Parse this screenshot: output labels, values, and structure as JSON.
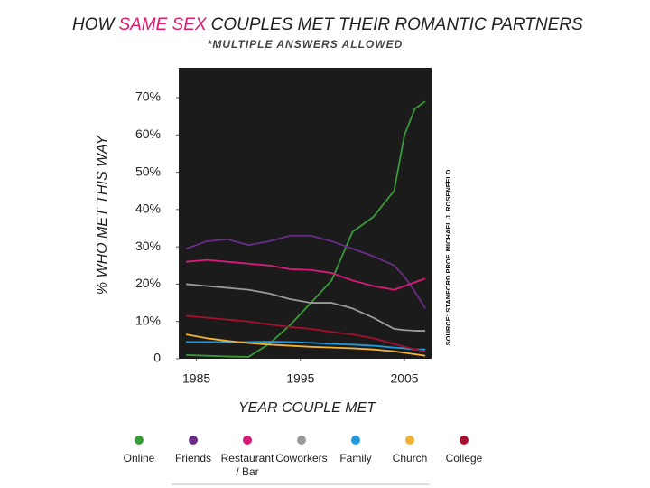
{
  "chart_data": {
    "type": "line",
    "title": {
      "before": "HOW",
      "highlight": "SAME SEX",
      "after": "COUPLES MET THEIR ROMANTIC PARTNERS"
    },
    "subtitle": "*MULTIPLE ANSWERS ALLOWED",
    "x_label": "YEAR COUPLE MET",
    "y_label": "% WHO MET THIS WAY",
    "source": "SOURCE:  STANFORD PROF. MICHAEL J. ROSENFELD",
    "x": [
      1984,
      1986,
      1988,
      1990,
      1992,
      1994,
      1996,
      1998,
      2000,
      2002,
      2004,
      2005,
      2006,
      2007
    ],
    "xlim": [
      1983.3,
      2007.6
    ],
    "xticks": [
      1985,
      1995,
      2005
    ],
    "ylim": [
      0,
      78
    ],
    "yticks": [
      0,
      {
        "value": 10,
        "label": "10%"
      },
      {
        "value": 20,
        "label": "20%"
      },
      {
        "value": 30,
        "label": "30%"
      },
      {
        "value": 40,
        "label": "40%"
      },
      {
        "value": 50,
        "label": "50%"
      },
      {
        "value": 60,
        "label": "60%"
      },
      {
        "value": 70,
        "label": "70%"
      }
    ],
    "background": "#1b1b1b",
    "highlight_color": "#e0196e",
    "series": [
      {
        "name": "Online",
        "color": "#3a9a3a",
        "values": [
          1,
          0.8,
          0.6,
          0.5,
          4,
          9,
          15,
          21,
          34,
          38,
          45,
          60,
          67,
          69
        ]
      },
      {
        "name": "Friends",
        "color": "#6a2d86",
        "values": [
          29.5,
          31.5,
          32,
          30.5,
          31.5,
          33,
          33,
          31.5,
          29.5,
          27.5,
          25,
          22,
          18,
          13.5
        ]
      },
      {
        "name": "Restaurant / Bar",
        "color": "#d81a78",
        "values": [
          26,
          26.5,
          26,
          25.5,
          25,
          24,
          23.8,
          23,
          21,
          19.5,
          18.5,
          19.5,
          20.5,
          21.5
        ]
      },
      {
        "name": "Coworkers",
        "color": "#9a9a9a",
        "values": [
          20,
          19.5,
          19,
          18.5,
          17.5,
          16,
          15,
          15,
          13.5,
          11,
          8,
          7.7,
          7.5,
          7.5
        ]
      },
      {
        "name": "Family",
        "color": "#1e9be0",
        "values": [
          4.5,
          4.5,
          4.5,
          4.5,
          4.6,
          4.5,
          4.3,
          4,
          3.8,
          3.5,
          3,
          2.8,
          2.5,
          2.5
        ]
      },
      {
        "name": "Church",
        "color": "#f2b233",
        "values": [
          6.5,
          5.5,
          4.8,
          4.2,
          3.8,
          3.5,
          3.2,
          3,
          2.8,
          2.5,
          2,
          1.6,
          1.2,
          0.8
        ]
      },
      {
        "name": "College",
        "color": "#a8102e",
        "values": [
          11.5,
          11,
          10.5,
          10,
          9.2,
          8.5,
          8,
          7.2,
          6.5,
          5.5,
          4,
          3.2,
          2.5,
          2
        ]
      }
    ]
  }
}
